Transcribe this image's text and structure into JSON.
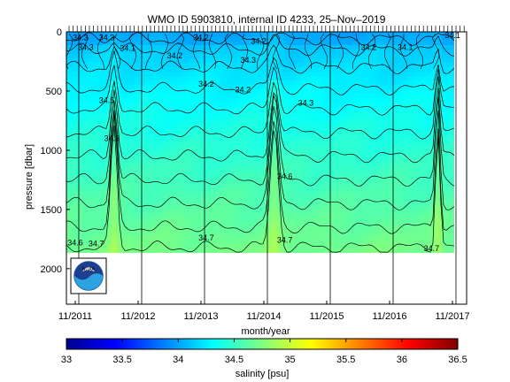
{
  "chart_data": {
    "type": "heatmap",
    "title": "WMO ID 5903810, internal ID 4233, 25–Nov–2019",
    "xlabel": "month/year",
    "ylabel": "pressure [dbar]",
    "x_ticks": [
      "11/2011",
      "11/2012",
      "11/2013",
      "11/2014",
      "11/2015",
      "11/2016",
      "11/2017"
    ],
    "y_ticks": [
      0,
      500,
      1000,
      1500,
      2000
    ],
    "ylim": [
      0,
      2300
    ],
    "y_reversed": true,
    "colorbar": {
      "label": "salinity [psu]",
      "ticks": [
        33,
        33.5,
        34,
        34.5,
        35,
        35.5,
        36,
        36.5
      ],
      "range": [
        33,
        36.5
      ]
    },
    "contour_labels": [
      {
        "label": "34.3",
        "date": "2011-12",
        "pressure": 50
      },
      {
        "label": "34.3",
        "date": "2012-05",
        "pressure": 50
      },
      {
        "label": "34.2",
        "date": "2013-11",
        "pressure": 50
      },
      {
        "label": "34.2",
        "date": "2014-10",
        "pressure": 80
      },
      {
        "label": "34.3",
        "date": "2012-01",
        "pressure": 130
      },
      {
        "label": "34.1",
        "date": "2012-09",
        "pressure": 140
      },
      {
        "label": "34.2",
        "date": "2013-06",
        "pressure": 200
      },
      {
        "label": "34.3",
        "date": "2014-08",
        "pressure": 240
      },
      {
        "label": "34.2",
        "date": "2013-12",
        "pressure": 440
      },
      {
        "label": "34.2",
        "date": "2014-07",
        "pressure": 490
      },
      {
        "label": "34.2",
        "date": "2016-07",
        "pressure": 130
      },
      {
        "label": "34.1",
        "date": "2017-02",
        "pressure": 130
      },
      {
        "label": "34.1",
        "date": "2017-11",
        "pressure": 30
      },
      {
        "label": "34.3",
        "date": "2015-07",
        "pressure": 600
      },
      {
        "label": "34.5",
        "date": "2012-05",
        "pressure": 580
      },
      {
        "label": "34.3",
        "date": "2012-06",
        "pressure": 900
      },
      {
        "label": "34.6",
        "date": "2015-03",
        "pressure": 1220
      },
      {
        "label": "34.6",
        "date": "2011-11",
        "pressure": 1780
      },
      {
        "label": "34.7",
        "date": "2012-03",
        "pressure": 1790
      },
      {
        "label": "34.7",
        "date": "2013-12",
        "pressure": 1740
      },
      {
        "label": "34.7",
        "date": "2015-03",
        "pressure": 1760
      },
      {
        "label": "34.7",
        "date": "2017-07",
        "pressure": 1830
      }
    ]
  }
}
